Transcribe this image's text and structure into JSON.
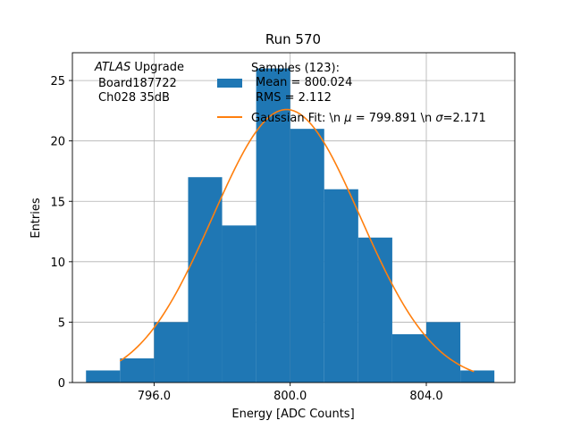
{
  "chart_data": {
    "type": "bar",
    "title": "Run 570",
    "xlabel": "Energy [ADC Counts]",
    "ylabel": "Entries",
    "xlim": [
      793.6,
      806.6
    ],
    "ylim": [
      0,
      27.3
    ],
    "grid": true,
    "xticks": [
      796,
      800,
      804
    ],
    "xtick_labels": [
      "796.0",
      "800.0",
      "804.0"
    ],
    "yticks": [
      0,
      5,
      10,
      15,
      20,
      25
    ],
    "ytick_labels": [
      "0",
      "5",
      "10",
      "15",
      "20",
      "25"
    ],
    "histogram": {
      "name": "Samples (123):",
      "color": "#1f77b4",
      "bin_edges": [
        794,
        795,
        796,
        797,
        798,
        799,
        800,
        801,
        802,
        803,
        804,
        805,
        806
      ],
      "counts": [
        1,
        2,
        5,
        17,
        13,
        26,
        21,
        16,
        12,
        4,
        5,
        1
      ]
    },
    "fit": {
      "name": "Gaussian Fit",
      "color": "#ff7f0e",
      "mu": 799.891,
      "sigma": 2.171,
      "amplitude": 22.6,
      "x_range": [
        795.0,
        805.4
      ]
    },
    "annotation": {
      "experiment": "ATLAS",
      "suffix": " Upgrade",
      "line2": "Board187722",
      "line3": "Ch028 35dB"
    },
    "legend": {
      "position": "top-right",
      "hist_title": "Samples (123):",
      "hist_mean": "Mean = 800.024",
      "hist_rms": "RMS = 2.112",
      "fit_label_prefix": "Gaussian Fit: \\n ",
      "fit_mu_symbol": "μ",
      "fit_label_mid": " = 799.891 \\n ",
      "fit_sigma_symbol": "σ",
      "fit_label_suffix": "=2.171"
    }
  }
}
